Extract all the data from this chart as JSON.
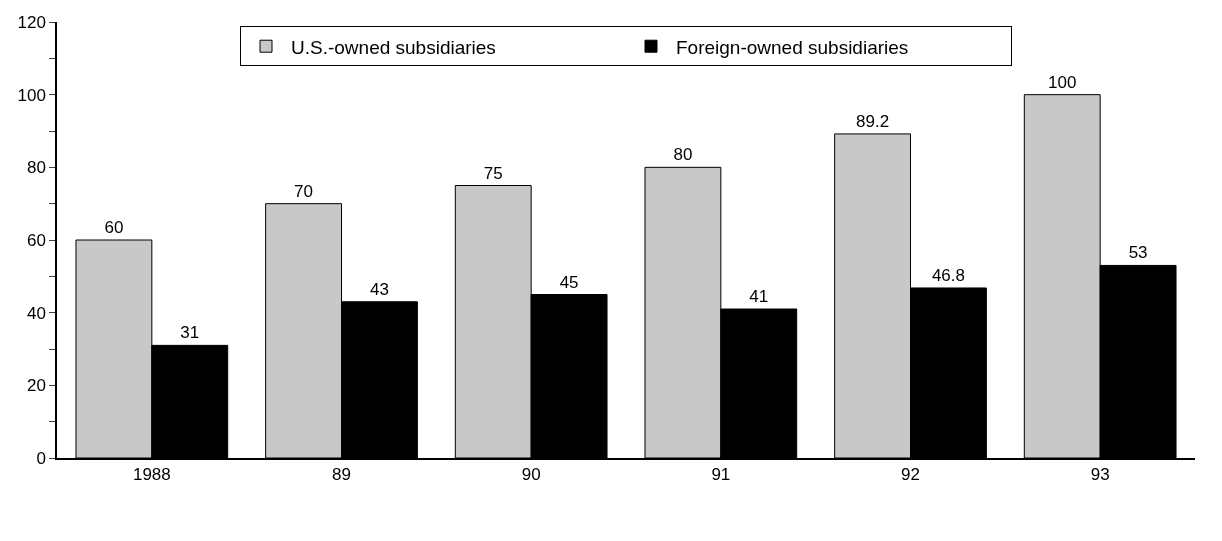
{
  "chart_data": {
    "type": "bar",
    "categories": [
      "1988",
      "89",
      "90",
      "91",
      "92",
      "93"
    ],
    "series": [
      {
        "name": "U.S.-owned subsidiaries",
        "color": "#c8c8c8",
        "values": [
          60,
          70,
          75,
          80,
          89.2,
          100
        ]
      },
      {
        "name": "Foreign-owned subsidiaries",
        "color": "#000000",
        "values": [
          31,
          43,
          45,
          41,
          46.8,
          53
        ]
      }
    ],
    "ylim": [
      0,
      120
    ],
    "yticks": [
      0,
      {
        "value": 10,
        "label": null
      },
      20,
      {
        "value": 30,
        "label": null
      },
      40,
      {
        "value": 50,
        "label": null
      },
      60,
      {
        "value": 70,
        "label": null
      },
      80,
      {
        "value": 90,
        "label": null
      },
      100,
      {
        "value": 110,
        "label": null
      },
      120
    ],
    "data_labels": true,
    "grid": false,
    "legend": "top"
  }
}
